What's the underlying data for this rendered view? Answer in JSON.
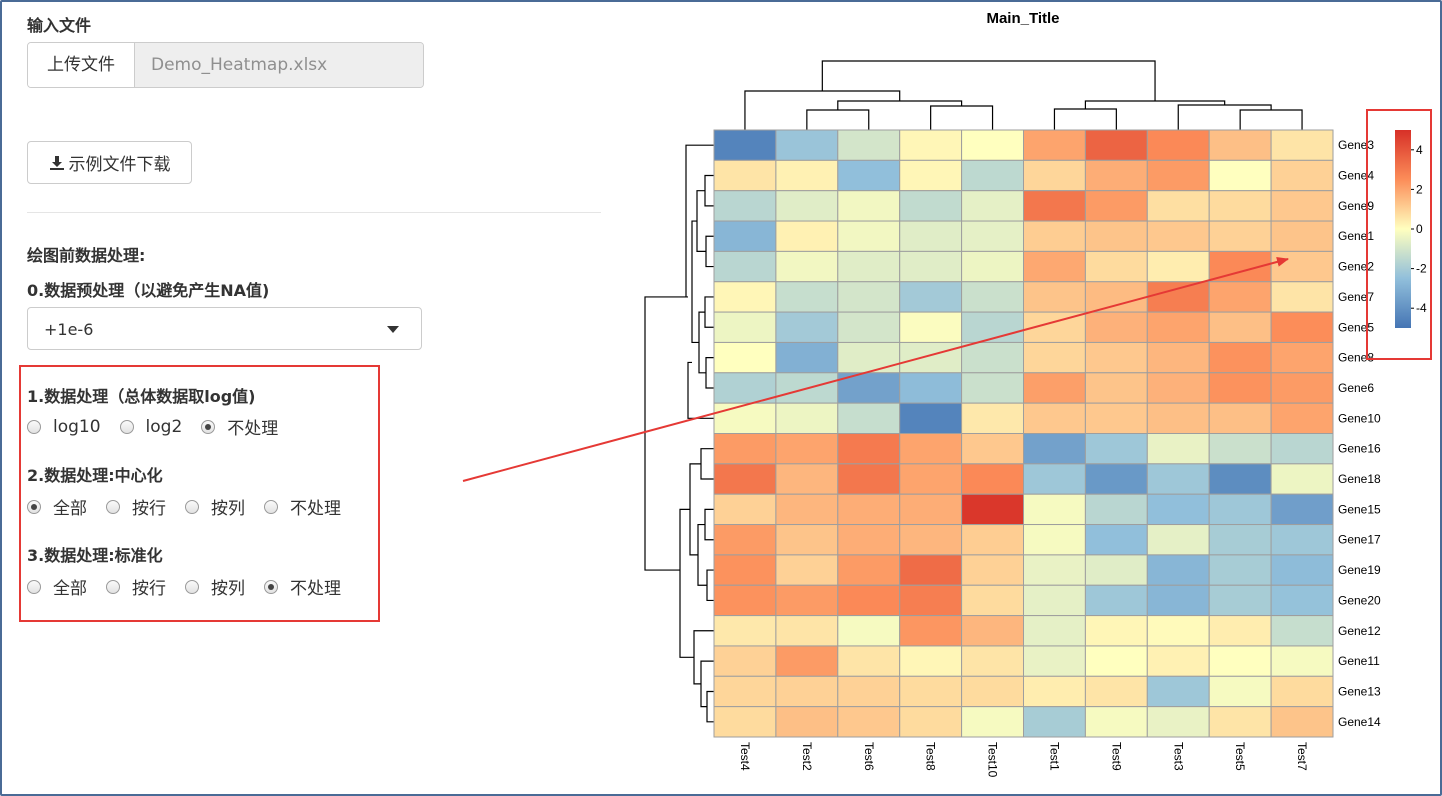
{
  "sidebar": {
    "input_label": "输入文件",
    "upload_button": "上传文件",
    "file_name": "Demo_Heatmap.xlsx",
    "download_button": "示例文件下载",
    "preprocess_title": "绘图前数据处理:",
    "step0_label": "0.数据预处理（以避免产生NA值)",
    "step0_value": "+1e-6",
    "step1_label": "1.数据处理（总体数据取log值)",
    "step1_options": [
      "log10",
      "log2",
      "不处理"
    ],
    "step1_selected": 2,
    "step2_label": "2.数据处理:中心化",
    "step2_options": [
      "全部",
      "按行",
      "按列",
      "不处理"
    ],
    "step2_selected": 0,
    "step3_label": "3.数据处理:标准化",
    "step3_options": [
      "全部",
      "按行",
      "按列",
      "不处理"
    ],
    "step3_selected": 3
  },
  "chart_data": {
    "type": "heatmap",
    "title": "Main_Title",
    "columns": [
      "Test4",
      "Test2",
      "Test6",
      "Test8",
      "Test10",
      "Test1",
      "Test9",
      "Test3",
      "Test5",
      "Test7"
    ],
    "rows": [
      "Gene3",
      "Gene4",
      "Gene9",
      "Gene1",
      "Gene2",
      "Gene7",
      "Gene5",
      "Gene8",
      "Gene6",
      "Gene10",
      "Gene16",
      "Gene18",
      "Gene15",
      "Gene17",
      "Gene19",
      "Gene20",
      "Gene12",
      "Gene11",
      "Gene13",
      "Gene14"
    ],
    "values": [
      [
        -4.5,
        -2.3,
        -1.0,
        0.2,
        0.0,
        2.0,
        3.6,
        2.6,
        1.4,
        0.6
      ],
      [
        0.6,
        0.3,
        -2.5,
        0.2,
        -1.5,
        0.9,
        1.8,
        2.2,
        0.0,
        1.0
      ],
      [
        -1.6,
        -0.7,
        -0.3,
        -1.4,
        -0.6,
        3.1,
        2.2,
        0.7,
        0.8,
        1.2
      ],
      [
        -2.8,
        0.3,
        -0.3,
        -0.7,
        -0.6,
        1.1,
        1.3,
        1.2,
        1.0,
        1.3
      ],
      [
        -1.6,
        -0.3,
        -0.7,
        -0.7,
        -0.4,
        1.9,
        0.8,
        0.4,
        2.6,
        1.2
      ],
      [
        0.2,
        -1.3,
        -1.0,
        -2.1,
        -1.2,
        1.3,
        1.5,
        2.9,
        2.0,
        0.6
      ],
      [
        -0.4,
        -2.1,
        -1.0,
        -0.1,
        -1.6,
        0.9,
        1.7,
        2.0,
        1.4,
        2.5
      ],
      [
        0.0,
        -3.0,
        -0.7,
        -0.7,
        -1.2,
        0.9,
        1.2,
        1.6,
        2.4,
        2.0
      ],
      [
        -1.8,
        -1.5,
        -3.5,
        -2.6,
        -1.2,
        2.1,
        1.3,
        1.7,
        2.4,
        2.2
      ],
      [
        -0.2,
        -0.4,
        -1.3,
        -4.5,
        0.5,
        1.2,
        1.2,
        1.4,
        1.4,
        2.0
      ],
      [
        2.2,
        2.0,
        3.0,
        2.0,
        1.2,
        -3.5,
        -2.2,
        -0.5,
        -1.2,
        -1.6
      ],
      [
        3.1,
        1.6,
        3.1,
        2.0,
        2.6,
        -2.2,
        -3.8,
        -2.2,
        -4.2,
        -0.4
      ],
      [
        1.0,
        1.6,
        1.8,
        1.8,
        4.8,
        -0.2,
        -1.6,
        -2.5,
        -2.2,
        -3.6
      ],
      [
        2.2,
        1.3,
        1.8,
        1.6,
        1.1,
        -0.2,
        -2.5,
        -0.6,
        -2.0,
        -2.2
      ],
      [
        2.4,
        1.0,
        2.2,
        3.4,
        1.0,
        -0.5,
        -0.7,
        -2.8,
        -2.0,
        -2.6
      ],
      [
        2.4,
        2.2,
        2.6,
        2.9,
        0.8,
        -0.6,
        -2.2,
        -2.8,
        -2.0,
        -2.4
      ],
      [
        0.5,
        0.6,
        -0.2,
        2.3,
        1.6,
        -0.6,
        0.2,
        0.1,
        0.4,
        -1.3
      ],
      [
        1.0,
        2.2,
        0.6,
        0.2,
        0.6,
        -0.5,
        0.0,
        0.3,
        0.0,
        -0.2
      ],
      [
        0.9,
        1.0,
        1.0,
        0.8,
        0.8,
        0.4,
        0.6,
        -2.2,
        -0.2,
        0.8
      ],
      [
        0.8,
        1.4,
        1.2,
        0.8,
        -0.2,
        -2.0,
        -0.2,
        -0.5,
        0.6,
        1.3
      ]
    ],
    "legend": {
      "ticks": [
        4,
        2,
        0,
        -2,
        -4
      ],
      "range": [
        -5,
        5
      ]
    },
    "colors": {
      "low": "#4575b4",
      "mid": "#ffffbf",
      "high": "#d73027"
    }
  }
}
